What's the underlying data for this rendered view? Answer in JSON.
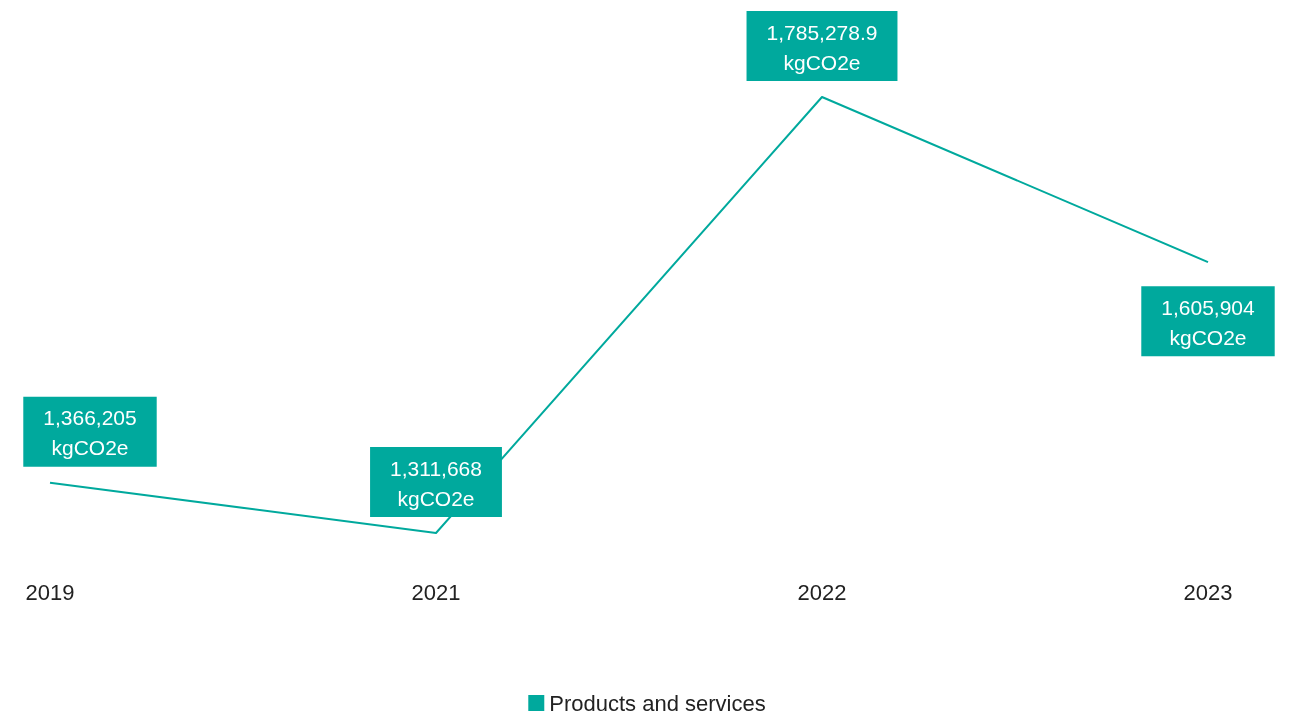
{
  "chart_data": {
    "type": "line",
    "categories": [
      "2019",
      "2021",
      "2022",
      "2023"
    ],
    "series": [
      {
        "name": "Products and services",
        "color": "#00a99d",
        "values": [
          1366205,
          1311668,
          1785278.9,
          1605904
        ],
        "value_labels": [
          "1,366,205\nkgCO2e",
          "1,311,668\nkgCO2e",
          "1,785,278.9\nkgCO2e",
          "1,605,904\nkgCO2e"
        ]
      }
    ],
    "legend": "bottom",
    "marker": "none",
    "line_style": "solid",
    "grid": false
  }
}
